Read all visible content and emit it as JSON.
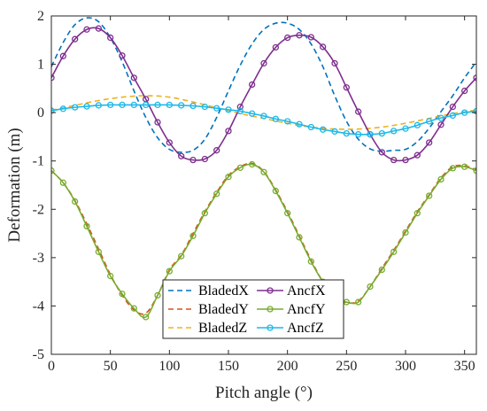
{
  "chart_data": {
    "type": "line",
    "xlabel": "Pitch angle (°)",
    "ylabel": "Deformation (m)",
    "xlim": [
      0,
      360
    ],
    "ylim": [
      -5,
      2
    ],
    "xticks": [
      "0",
      "50",
      "100",
      "150",
      "200",
      "250",
      "300",
      "350"
    ],
    "yticks": [
      "-5",
      "-4",
      "-3",
      "-2",
      "-1",
      "0",
      "1",
      "2"
    ],
    "grid": false,
    "legend_position": "bottom-left",
    "legend_columns": 2,
    "series": [
      {
        "name": "BladedX",
        "style": "dashed",
        "color": "#0072BD",
        "marker": "none",
        "x": [
          0,
          10,
          20,
          30,
          40,
          50,
          60,
          70,
          80,
          90,
          100,
          110,
          120,
          130,
          140,
          150,
          160,
          170,
          180,
          190,
          200,
          210,
          220,
          230,
          240,
          250,
          260,
          270,
          280,
          290,
          300,
          310,
          320,
          330,
          340,
          350,
          360
        ],
        "y": [
          0.95,
          1.45,
          1.82,
          1.96,
          1.88,
          1.55,
          1.05,
          0.45,
          -0.1,
          -0.52,
          -0.76,
          -0.82,
          -0.78,
          -0.55,
          -0.1,
          0.45,
          0.98,
          1.42,
          1.72,
          1.85,
          1.85,
          1.72,
          1.42,
          0.95,
          0.35,
          -0.18,
          -0.55,
          -0.75,
          -0.8,
          -0.78,
          -0.76,
          -0.6,
          -0.32,
          0.02,
          0.35,
          0.72,
          1.05
        ]
      },
      {
        "name": "BladedY",
        "style": "dashed",
        "color": "#D95319",
        "marker": "none",
        "x": [
          0,
          10,
          20,
          30,
          40,
          50,
          60,
          70,
          80,
          90,
          100,
          110,
          120,
          130,
          140,
          150,
          160,
          170,
          180,
          190,
          200,
          210,
          220,
          230,
          240,
          250,
          260,
          270,
          280,
          290,
          300,
          310,
          320,
          330,
          340,
          350,
          360
        ],
        "y": [
          -1.2,
          -1.45,
          -1.82,
          -2.3,
          -2.82,
          -3.35,
          -3.78,
          -4.08,
          -4.15,
          -3.78,
          -3.25,
          -2.95,
          -2.5,
          -2.05,
          -1.65,
          -1.3,
          -1.12,
          -1.05,
          -1.22,
          -1.6,
          -2.05,
          -2.55,
          -3.05,
          -3.5,
          -3.82,
          -3.93,
          -3.9,
          -3.6,
          -3.22,
          -2.85,
          -2.45,
          -2.05,
          -1.7,
          -1.35,
          -1.12,
          -1.1,
          -1.18
        ]
      },
      {
        "name": "BladedZ",
        "style": "dashed",
        "color": "#EDB120",
        "marker": "none",
        "x": [
          0,
          20,
          40,
          60,
          80,
          100,
          120,
          140,
          160,
          180,
          200,
          220,
          240,
          260,
          280,
          300,
          320,
          340,
          360
        ],
        "y": [
          0.05,
          0.15,
          0.25,
          0.32,
          0.35,
          0.32,
          0.22,
          0.1,
          -0.02,
          -0.12,
          -0.22,
          -0.3,
          -0.34,
          -0.34,
          -0.3,
          -0.22,
          -0.12,
          -0.02,
          0.05
        ]
      },
      {
        "name": "AncfX",
        "style": "solid",
        "color": "#7E2F8E",
        "marker": "circle",
        "x": [
          0,
          10,
          20,
          30,
          40,
          50,
          60,
          70,
          80,
          90,
          100,
          110,
          120,
          130,
          140,
          150,
          160,
          170,
          180,
          190,
          200,
          210,
          220,
          230,
          240,
          250,
          260,
          270,
          280,
          290,
          300,
          310,
          320,
          330,
          340,
          350,
          360
        ],
        "y": [
          0.72,
          1.17,
          1.52,
          1.72,
          1.74,
          1.55,
          1.18,
          0.72,
          0.28,
          -0.2,
          -0.62,
          -0.9,
          -0.98,
          -0.96,
          -0.78,
          -0.38,
          0.12,
          0.58,
          1.02,
          1.35,
          1.55,
          1.6,
          1.56,
          1.36,
          1.02,
          0.52,
          0.02,
          -0.45,
          -0.82,
          -0.98,
          -0.98,
          -0.88,
          -0.62,
          -0.25,
          0.12,
          0.45,
          0.72
        ]
      },
      {
        "name": "AncfY",
        "style": "solid",
        "color": "#77AC30",
        "marker": "circle",
        "x": [
          0,
          10,
          20,
          30,
          40,
          50,
          60,
          70,
          80,
          90,
          100,
          110,
          120,
          130,
          140,
          150,
          160,
          170,
          180,
          190,
          200,
          210,
          220,
          230,
          240,
          250,
          260,
          270,
          280,
          290,
          300,
          310,
          320,
          330,
          340,
          350,
          360
        ],
        "y": [
          -1.2,
          -1.45,
          -1.84,
          -2.35,
          -2.88,
          -3.38,
          -3.75,
          -4.05,
          -4.23,
          -3.78,
          -3.28,
          -2.97,
          -2.55,
          -2.08,
          -1.68,
          -1.33,
          -1.14,
          -1.07,
          -1.23,
          -1.62,
          -2.08,
          -2.58,
          -3.08,
          -3.5,
          -3.8,
          -3.92,
          -3.92,
          -3.6,
          -3.25,
          -2.88,
          -2.48,
          -2.08,
          -1.72,
          -1.38,
          -1.15,
          -1.12,
          -1.2
        ]
      },
      {
        "name": "AncfZ",
        "style": "solid",
        "color": "#1CB8E8",
        "marker": "circle",
        "x": [
          0,
          10,
          20,
          30,
          40,
          50,
          60,
          70,
          80,
          90,
          100,
          110,
          120,
          130,
          140,
          150,
          160,
          170,
          180,
          190,
          200,
          210,
          220,
          230,
          240,
          250,
          260,
          270,
          280,
          290,
          300,
          310,
          320,
          330,
          340,
          350,
          360
        ],
        "y": [
          0.04,
          0.08,
          0.11,
          0.13,
          0.15,
          0.16,
          0.16,
          0.16,
          0.16,
          0.16,
          0.16,
          0.15,
          0.14,
          0.12,
          0.09,
          0.06,
          0.03,
          -0.02,
          -0.07,
          -0.13,
          -0.18,
          -0.24,
          -0.3,
          -0.35,
          -0.39,
          -0.43,
          -0.45,
          -0.45,
          -0.43,
          -0.38,
          -0.33,
          -0.26,
          -0.18,
          -0.11,
          -0.06,
          0.0,
          0.03
        ]
      }
    ]
  }
}
